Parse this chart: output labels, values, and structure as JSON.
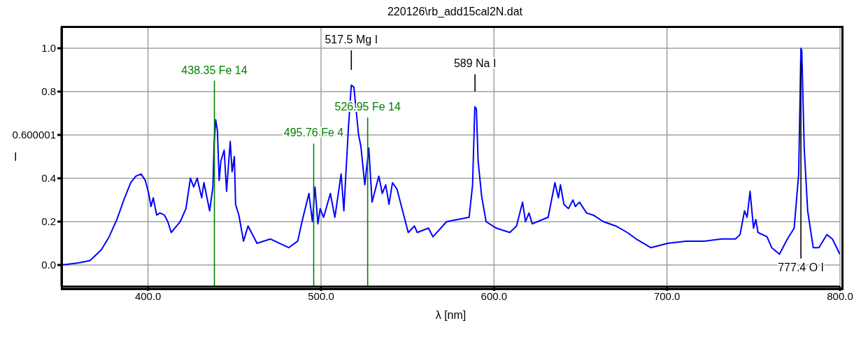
{
  "chart_data": {
    "type": "line",
    "title": "220126\\rb_add15cal2N.dat",
    "xlabel": "λ [nm]",
    "ylabel": "I",
    "xlim": [
      350,
      800
    ],
    "ylim": [
      -0.1,
      1.1
    ],
    "xticks": [
      {
        "value": 400,
        "label": "400.0"
      },
      {
        "value": 500,
        "label": "500.0"
      },
      {
        "value": 600,
        "label": "600.0"
      },
      {
        "value": 700,
        "label": "700.0"
      },
      {
        "value": 800,
        "label": "800.0"
      }
    ],
    "yticks": [
      {
        "value": 0,
        "label": "0.0"
      },
      {
        "value": 0.2,
        "label": "0.2"
      },
      {
        "value": 0.4,
        "label": "0.4"
      },
      0.600001,
      {
        "value": 0.8,
        "label": "0.8"
      },
      {
        "value": 1.0,
        "label": "1.0"
      }
    ],
    "grid": true,
    "marker": "none",
    "legend": false,
    "series": [
      {
        "color": "#0000ff",
        "x": [
          350,
          359.8,
          366.4,
          373,
          377.5,
          382,
          386,
          390,
          393,
          396,
          398.4,
          400.4,
          401.7,
          403,
          405,
          406.9,
          409.5,
          411.4,
          413.4,
          418.6,
          421.9,
          424.5,
          426.4,
          428.4,
          431,
          432.3,
          435.6,
          437.5,
          438.2,
          439.1,
          440.1,
          441.1,
          442.1,
          444,
          445.4,
          447.5,
          448.6,
          449.9,
          450.6,
          452.5,
          455.2,
          457.8,
          463,
          470.8,
          481.3,
          486.5,
          489,
          493,
          495,
          496.5,
          498.2,
          499.5,
          501.5,
          505.4,
          508,
          511.6,
          513.2,
          515.8,
          517.5,
          519,
          521.7,
          523,
          525.3,
          527.6,
          529.5,
          533.4,
          535.4,
          537.4,
          539.3,
          541.3,
          543.9,
          550.4,
          554,
          555.6,
          562.1,
          564.7,
          572.6,
          585.6,
          587.6,
          588.9,
          589.8,
          590.8,
          592.8,
          595.4,
          601.3,
          609.1,
          613,
          616.5,
          618.2,
          620.2,
          622.1,
          631.3,
          635.2,
          637.2,
          638.4,
          640.4,
          643,
          645.6,
          647,
          649.4,
          653.5,
          657.4,
          663.2,
          670.4,
          677,
          682.2,
          690.6,
          700.4,
          710.9,
          721.3,
          731.7,
          739.6,
          742.2,
          744.8,
          746.3,
          748,
          750,
          751.3,
          752.6,
          757.8,
          760.5,
          765,
          769.6,
          773.5,
          776.1,
          777.4,
          777.9,
          779.3,
          781.3,
          784.5,
          787.8,
          792.4,
          795.6,
          799.9
        ],
        "values": [
          0.0,
          0.01,
          0.02,
          0.07,
          0.13,
          0.21,
          0.3,
          0.38,
          0.41,
          0.42,
          0.39,
          0.33,
          0.27,
          0.31,
          0.23,
          0.24,
          0.23,
          0.2,
          0.15,
          0.2,
          0.26,
          0.4,
          0.36,
          0.4,
          0.31,
          0.38,
          0.25,
          0.36,
          0.56,
          0.67,
          0.62,
          0.39,
          0.48,
          0.53,
          0.34,
          0.57,
          0.43,
          0.5,
          0.28,
          0.23,
          0.11,
          0.18,
          0.1,
          0.12,
          0.08,
          0.11,
          0.2,
          0.33,
          0.2,
          0.36,
          0.19,
          0.26,
          0.22,
          0.33,
          0.22,
          0.42,
          0.25,
          0.63,
          0.83,
          0.82,
          0.6,
          0.55,
          0.37,
          0.54,
          0.29,
          0.41,
          0.33,
          0.37,
          0.28,
          0.38,
          0.35,
          0.15,
          0.18,
          0.15,
          0.17,
          0.13,
          0.2,
          0.22,
          0.37,
          0.73,
          0.72,
          0.48,
          0.32,
          0.2,
          0.17,
          0.15,
          0.18,
          0.29,
          0.2,
          0.24,
          0.19,
          0.22,
          0.38,
          0.31,
          0.37,
          0.28,
          0.26,
          0.3,
          0.27,
          0.29,
          0.24,
          0.23,
          0.2,
          0.18,
          0.15,
          0.12,
          0.08,
          0.1,
          0.11,
          0.11,
          0.12,
          0.12,
          0.14,
          0.25,
          0.22,
          0.34,
          0.17,
          0.21,
          0.15,
          0.13,
          0.08,
          0.05,
          0.12,
          0.17,
          0.42,
          1.0,
          0.99,
          0.54,
          0.25,
          0.08,
          0.08,
          0.14,
          0.12,
          0.05
        ]
      },
      {
        "name": "438.35 Fe 14",
        "color": "#008000",
        "x": [
          438.35,
          438.35
        ],
        "values": [
          -0.1,
          0.85
        ]
      },
      {
        "name": "495.76 Fe 4",
        "color": "#008000",
        "x": [
          495.76,
          495.76
        ],
        "values": [
          -0.1,
          0.56
        ]
      },
      {
        "name": "526.95 Fe 14",
        "color": "#008000",
        "x": [
          526.95,
          526.95
        ],
        "values": [
          -0.1,
          0.68
        ]
      },
      {
        "name": "517.5 Mg I",
        "color": "#000000",
        "x": [
          517.5,
          517.5
        ],
        "values": [
          0.9,
          0.99
        ]
      },
      {
        "name": "589 Na I",
        "color": "#000000",
        "x": [
          589,
          589
        ],
        "values": [
          0.8,
          0.88
        ]
      },
      {
        "name": "777.4 O I",
        "color": "#000000",
        "x": [
          777.4,
          777.4
        ],
        "values": [
          0.94,
          0.03
        ]
      }
    ]
  }
}
